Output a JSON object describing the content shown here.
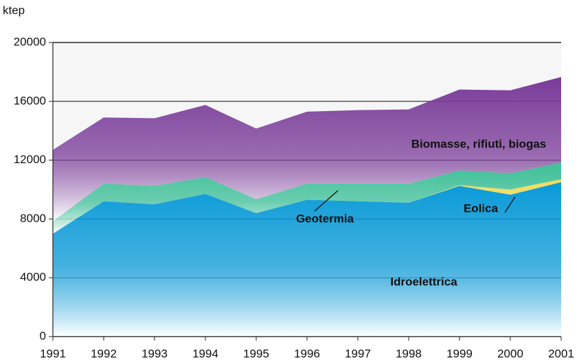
{
  "chart_data": {
    "type": "stacked_area",
    "y_label": "ktep",
    "x": [
      1991,
      1992,
      1993,
      1994,
      1995,
      1996,
      1997,
      1998,
      1999,
      2000,
      2001
    ],
    "xlim": [
      1991,
      2001
    ],
    "xticks": [
      1991,
      1992,
      1993,
      1994,
      1995,
      1996,
      1997,
      1998,
      1999,
      2000,
      2001
    ],
    "ylim": [
      0,
      20000
    ],
    "yticks": [
      0,
      4000,
      8000,
      12000,
      16000,
      20000
    ],
    "grid": true,
    "series": [
      {
        "name": "Idroelettrica",
        "color": "#0a9ad8",
        "values": [
          7000,
          9200,
          9000,
          9700,
          8400,
          9300,
          9200,
          9100,
          10250,
          9650,
          10500
        ]
      },
      {
        "name": "Eolica",
        "color": "#f2dc5a",
        "values": [
          0,
          0,
          0,
          0,
          0,
          0,
          0,
          0,
          50,
          350,
          200
        ]
      },
      {
        "name": "Geotermia",
        "color": "#3dbf98",
        "values": [
          850,
          1200,
          1250,
          1150,
          950,
          1100,
          1200,
          1300,
          1000,
          1100,
          1150
        ]
      },
      {
        "name": "Biomasse, rifiuti, biogas",
        "color": "#7a3c99",
        "values": [
          4850,
          4500,
          4600,
          4900,
          4800,
          4900,
          5000,
          5050,
          5500,
          5650,
          5800
        ]
      }
    ]
  }
}
